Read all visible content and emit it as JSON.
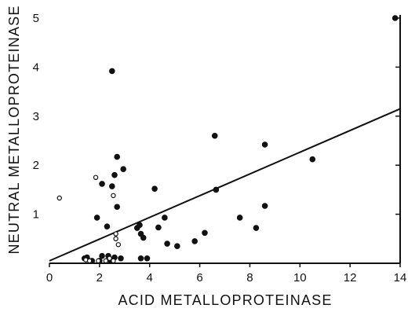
{
  "chart_data": {
    "type": "scatter",
    "xlabel": "ACID METALLOPROTEINASE",
    "ylabel": "NEUTRAL METALLOPROTEINASE",
    "xlim": [
      0,
      14
    ],
    "ylim": [
      0,
      5
    ],
    "xticks": [
      0,
      2,
      4,
      6,
      8,
      10,
      12,
      14
    ],
    "yticks": [
      1,
      2,
      3,
      4,
      5
    ],
    "grid": false,
    "series": [
      {
        "marker": "filled-circle",
        "color": "#111111",
        "points": [
          [
            2.5,
            3.92
          ],
          [
            13.8,
            5.0
          ],
          [
            2.7,
            2.17
          ],
          [
            2.1,
            1.62
          ],
          [
            2.6,
            1.8
          ],
          [
            2.95,
            1.92
          ],
          [
            2.5,
            1.57
          ],
          [
            2.7,
            1.15
          ],
          [
            1.9,
            0.93
          ],
          [
            2.3,
            0.75
          ],
          [
            3.5,
            0.72
          ],
          [
            3.6,
            0.78
          ],
          [
            3.65,
            0.6
          ],
          [
            3.75,
            0.52
          ],
          [
            4.2,
            1.52
          ],
          [
            4.35,
            0.73
          ],
          [
            4.6,
            0.93
          ],
          [
            4.7,
            0.4
          ],
          [
            5.1,
            0.35
          ],
          [
            5.8,
            0.45
          ],
          [
            6.2,
            0.62
          ],
          [
            6.6,
            2.6
          ],
          [
            6.65,
            1.5
          ],
          [
            7.6,
            0.93
          ],
          [
            8.25,
            0.72
          ],
          [
            8.6,
            2.42
          ],
          [
            8.6,
            1.17
          ],
          [
            10.5,
            2.12
          ],
          [
            3.65,
            0.1
          ],
          [
            3.9,
            0.1
          ],
          [
            2.85,
            0.1
          ],
          [
            1.4,
            0.1
          ],
          [
            1.5,
            0.12
          ],
          [
            1.7,
            0.05
          ],
          [
            2.0,
            0.05
          ],
          [
            2.1,
            0.15
          ],
          [
            2.35,
            0.15
          ],
          [
            2.45,
            0.05
          ],
          [
            2.6,
            0.12
          ]
        ]
      },
      {
        "marker": "open-circle",
        "color": "#111111",
        "points": [
          [
            0.4,
            1.33
          ],
          [
            1.85,
            1.75
          ],
          [
            2.55,
            1.38
          ],
          [
            2.65,
            0.6
          ],
          [
            2.65,
            0.5
          ],
          [
            2.75,
            0.38
          ],
          [
            1.45,
            0.07
          ],
          [
            1.6,
            0.05
          ],
          [
            1.95,
            0.05
          ],
          [
            2.25,
            0.05
          ],
          [
            2.4,
            0.1
          ],
          [
            2.55,
            0.05
          ]
        ]
      }
    ],
    "regression_line": {
      "x": [
        0,
        14
      ],
      "y": [
        0.05,
        3.15
      ]
    }
  }
}
